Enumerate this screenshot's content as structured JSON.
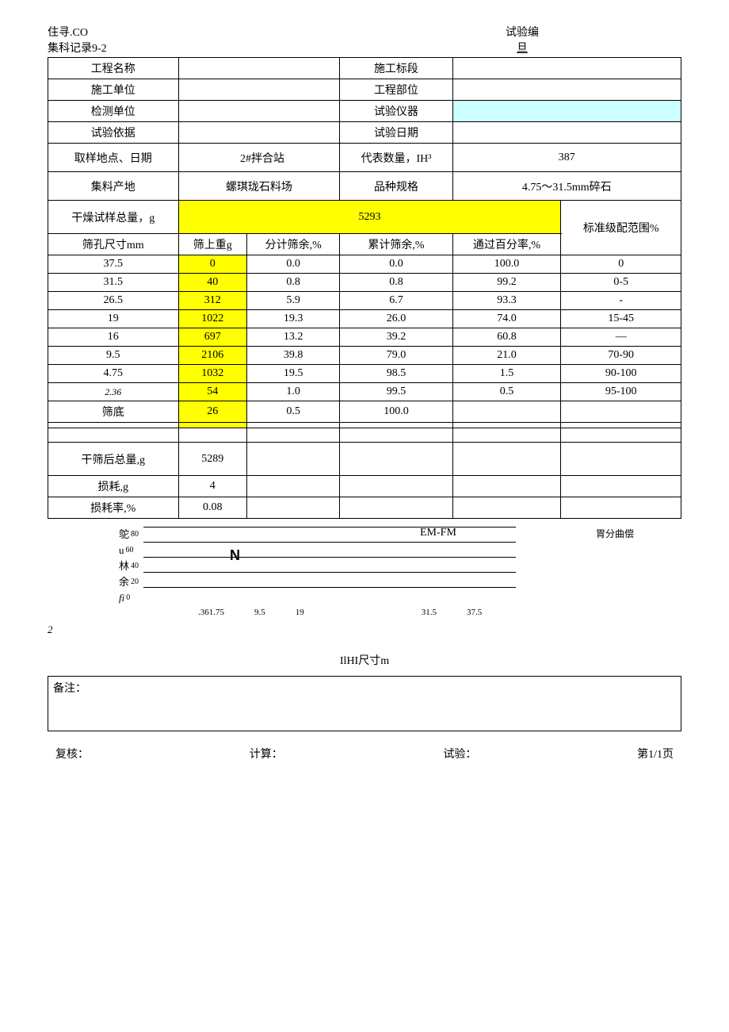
{
  "header": {
    "top_left_1": "住寻.CO",
    "top_left_2": "集科记录9-2",
    "top_right_1": "试验编",
    "top_right_2": "旦"
  },
  "info": {
    "proj_name_lbl": "工程名称",
    "proj_name_val": "",
    "section_lbl": "施工标段",
    "section_val": "",
    "unit_lbl": "施工单位",
    "unit_val": "",
    "part_lbl": "工程部位",
    "part_val": "",
    "test_unit_lbl": "检测单位",
    "test_unit_val": "",
    "equip_lbl": "试验仪器",
    "equip_val": "",
    "basis_lbl": "试验依据",
    "basis_val": "",
    "date_lbl": "试验日期",
    "date_val": "",
    "sample_loc_lbl": "取样地点、日期",
    "sample_loc_val": "2#拌合站",
    "rep_qty_lbl": "代表数量，IH³",
    "rep_qty_val": "387",
    "origin_lbl": "集料产地",
    "origin_val": "螺琪珑石料场",
    "spec_lbl": "品种规格",
    "spec_val": "4.75～31.5mm碎石"
  },
  "sieve": {
    "total_mass_lbl": "干燥试样总量，g",
    "total_mass_val": "5293",
    "std_range_lbl": "标准级配范围%",
    "col_size": "筛孔尺寸mm",
    "col_retained": "筛上重g",
    "col_partial": "分计筛余,%",
    "col_cum": "累计筛余,%",
    "col_pass": "通过百分率,%",
    "rows": [
      {
        "size": "37.5",
        "ret": "0",
        "partial": "0.0",
        "cum": "0.0",
        "pass": "100.0",
        "range": "0"
      },
      {
        "size": "31.5",
        "ret": "40",
        "partial": "0.8",
        "cum": "0.8",
        "pass": "99.2",
        "range": "0-5"
      },
      {
        "size": "26.5",
        "ret": "312",
        "partial": "5.9",
        "cum": "6.7",
        "pass": "93.3",
        "range": "-"
      },
      {
        "size": "19",
        "ret": "1022",
        "partial": "19.3",
        "cum": "26.0",
        "pass": "74.0",
        "range": "15-45"
      },
      {
        "size": "16",
        "ret": "697",
        "partial": "13.2",
        "cum": "39.2",
        "pass": "60.8",
        "range": "—"
      },
      {
        "size": "9.5",
        "ret": "2106",
        "partial": "39.8",
        "cum": "79.0",
        "pass": "21.0",
        "range": "70-90"
      },
      {
        "size": "4.75",
        "ret": "1032",
        "partial": "19.5",
        "cum": "98.5",
        "pass": "1.5",
        "range": "90-100"
      },
      {
        "size": "2.36",
        "ret": "54",
        "partial": "1.0",
        "cum": "99.5",
        "pass": "0.5",
        "range": "95-100",
        "italic": true
      },
      {
        "size": "筛底",
        "ret": "26",
        "partial": "0.5",
        "cum": "100.0",
        "pass": "",
        "range": ""
      }
    ],
    "after_total_lbl": "干筛后总量,g",
    "after_total_val": "5289",
    "loss_lbl": "损耗,g",
    "loss_val": "4",
    "loss_rate_lbl": "损耗率,%",
    "loss_rate_val": "0.08"
  },
  "chart": {
    "top_text": "EM-FM",
    "right_label": "胃分曲偿",
    "n_label": "N",
    "y_labels": [
      {
        "cn": "鸵",
        "num": "80"
      },
      {
        "cn": "u",
        "num": "60"
      },
      {
        "cn": "林",
        "num": "40"
      },
      {
        "cn": "余",
        "num": "20"
      },
      {
        "cn": "fi",
        "num": "0",
        "italic": true
      }
    ],
    "x_labels": [
      ".361.75",
      "9.5",
      "19",
      "31.5",
      "37.5"
    ],
    "small_2": "2",
    "x_title": "IlHI尺寸m"
  },
  "remark_lbl": "备注：",
  "footer": {
    "review": "复核：",
    "calc": "计算：",
    "test": "试验：",
    "page": "第1/1页"
  },
  "colors": {
    "yellow": "#ffff00",
    "cyan": "#ccffff",
    "border": "#000000"
  }
}
